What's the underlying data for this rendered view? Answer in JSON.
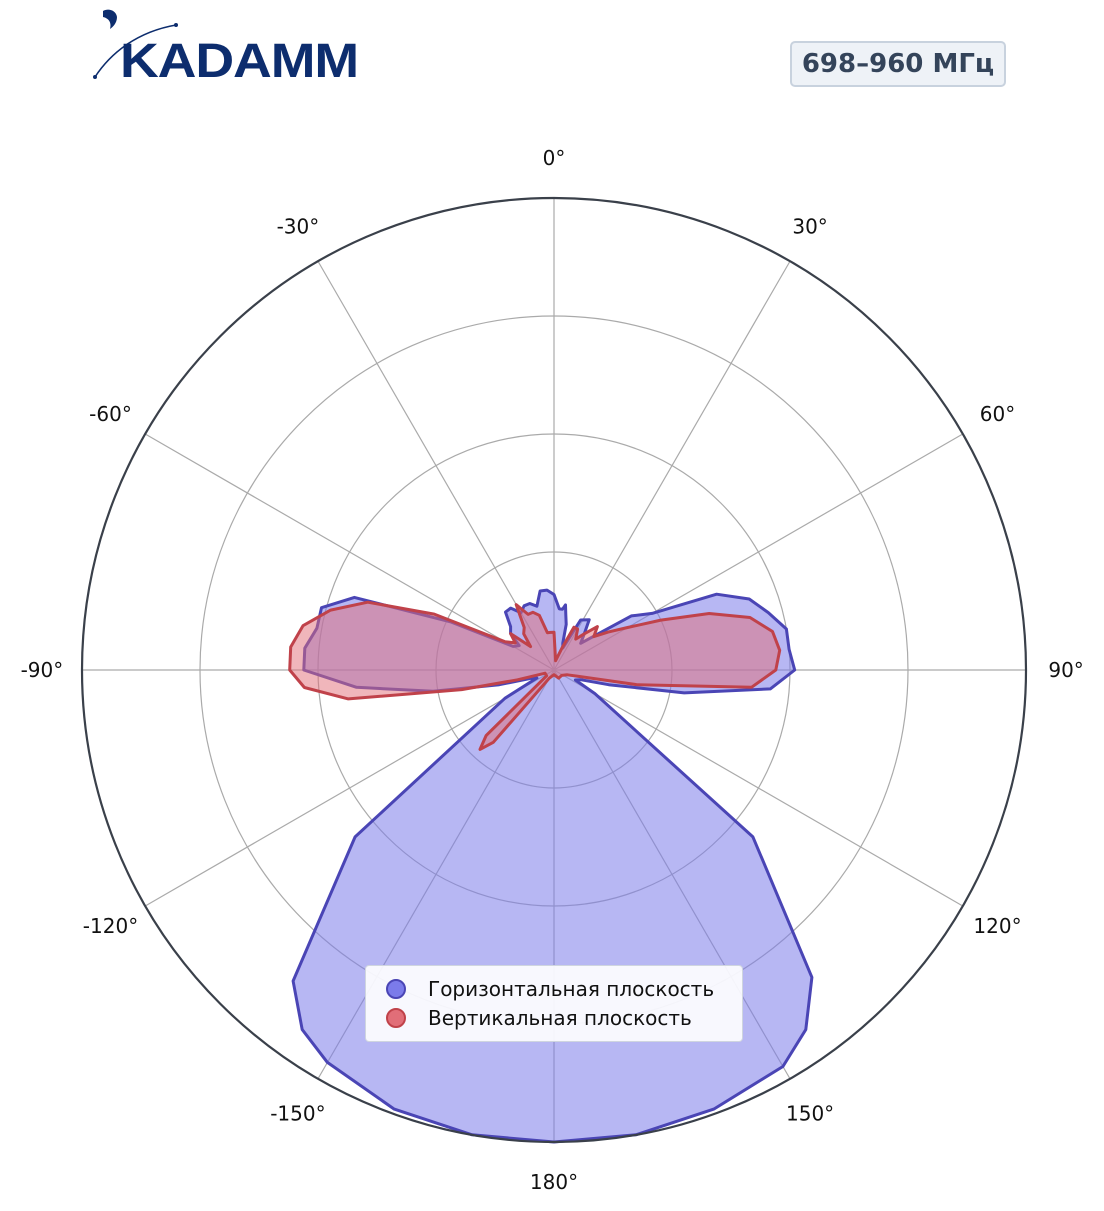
{
  "header": {
    "logo_text": "KADAMM",
    "frequency_badge": "698–960 МГц"
  },
  "colors": {
    "brand": "#0d2d6e",
    "horizontal_fill": "#7b7bea",
    "horizontal_line": "#4a45b5",
    "vertical_fill": "#e16e78",
    "vertical_line": "#c0424a",
    "grid": "#aaaaaa",
    "outer_ring": "#3a404a"
  },
  "chart_data": {
    "type": "polar",
    "angle_unit": "degrees",
    "angle_zero": "top",
    "angle_direction": "clockwise",
    "angle_ticks": [
      0,
      30,
      60,
      90,
      120,
      150,
      180,
      -150,
      -120,
      -90,
      -60,
      -30
    ],
    "angle_tick_labels": [
      "0°",
      "30°",
      "60°",
      "90°",
      "120°",
      "150°",
      "180°",
      "-150°",
      "-120°",
      "-90°",
      "-60°",
      "-30°"
    ],
    "radial_range": [
      0,
      1
    ],
    "radial_gridlines": [
      0.25,
      0.5,
      0.75,
      1.0
    ],
    "radial_tick_labels": "hidden",
    "grid": true,
    "legend_position": "bottom-center",
    "series": [
      {
        "name": "Горизонтальная плоскость",
        "color": "#7b7bea",
        "points": [
          [
            0,
            0.16
          ],
          [
            5,
            0.13
          ],
          [
            8,
            0.13
          ],
          [
            10,
            0.14
          ],
          [
            12,
            0.12
          ],
          [
            15,
            0.1
          ],
          [
            18,
            0.06
          ],
          [
            22,
            0.05
          ],
          [
            28,
            0.12
          ],
          [
            35,
            0.13
          ],
          [
            40,
            0.1
          ],
          [
            45,
            0.08
          ],
          [
            55,
            0.2
          ],
          [
            60,
            0.24
          ],
          [
            65,
            0.38
          ],
          [
            70,
            0.44
          ],
          [
            75,
            0.47
          ],
          [
            80,
            0.5
          ],
          [
            85,
            0.5
          ],
          [
            90,
            0.51
          ],
          [
            95,
            0.46
          ],
          [
            100,
            0.28
          ],
          [
            105,
            0.12
          ],
          [
            110,
            0.06
          ],
          [
            115,
            0.05
          ],
          [
            120,
            0.1
          ],
          [
            130,
            0.55
          ],
          [
            140,
            0.85
          ],
          [
            145,
            0.93
          ],
          [
            150,
            0.97
          ],
          [
            160,
            0.99
          ],
          [
            170,
            1.0
          ],
          [
            180,
            1.0
          ],
          [
            190,
            1.0
          ],
          [
            200,
            0.99
          ],
          [
            210,
            0.96
          ],
          [
            215,
            0.93
          ],
          [
            220,
            0.86
          ],
          [
            230,
            0.55
          ],
          [
            240,
            0.12
          ],
          [
            245,
            0.04
          ],
          [
            250,
            0.05
          ],
          [
            255,
            0.12
          ],
          [
            260,
            0.26
          ],
          [
            265,
            0.42
          ],
          [
            270,
            0.53
          ],
          [
            275,
            0.53
          ],
          [
            280,
            0.51
          ],
          [
            285,
            0.51
          ],
          [
            290,
            0.45
          ],
          [
            295,
            0.24
          ],
          [
            300,
            0.1
          ],
          [
            305,
            0.09
          ],
          [
            310,
            0.12
          ],
          [
            315,
            0.13
          ],
          [
            320,
            0.16
          ],
          [
            325,
            0.16
          ],
          [
            330,
            0.14
          ],
          [
            335,
            0.15
          ],
          [
            340,
            0.15
          ],
          [
            345,
            0.14
          ],
          [
            350,
            0.17
          ],
          [
            355,
            0.17
          ]
        ]
      },
      {
        "name": "Вертикальная плоскость",
        "color": "#e16e78",
        "points": [
          [
            0,
            0.08
          ],
          [
            10,
            0.02
          ],
          [
            20,
            0.05
          ],
          [
            25,
            0.1
          ],
          [
            30,
            0.1
          ],
          [
            35,
            0.08
          ],
          [
            40,
            0.1
          ],
          [
            45,
            0.13
          ],
          [
            50,
            0.11
          ],
          [
            55,
            0.14
          ],
          [
            60,
            0.18
          ],
          [
            65,
            0.25
          ],
          [
            70,
            0.35
          ],
          [
            75,
            0.43
          ],
          [
            80,
            0.47
          ],
          [
            85,
            0.48
          ],
          [
            90,
            0.47
          ],
          [
            95,
            0.42
          ],
          [
            100,
            0.18
          ],
          [
            105,
            0.05
          ],
          [
            110,
            0.03
          ],
          [
            125,
            0.02
          ],
          [
            150,
            0.02
          ],
          [
            180,
            0.01
          ],
          [
            210,
            0.02
          ],
          [
            220,
            0.2
          ],
          [
            223,
            0.23
          ],
          [
            226,
            0.2
          ],
          [
            232,
            0.02
          ],
          [
            250,
            0.02
          ],
          [
            255,
            0.08
          ],
          [
            258,
            0.2
          ],
          [
            262,
            0.44
          ],
          [
            266,
            0.53
          ],
          [
            270,
            0.56
          ],
          [
            275,
            0.56
          ],
          [
            280,
            0.54
          ],
          [
            285,
            0.49
          ],
          [
            290,
            0.42
          ],
          [
            295,
            0.28
          ],
          [
            300,
            0.12
          ],
          [
            305,
            0.1
          ],
          [
            310,
            0.12
          ],
          [
            315,
            0.07
          ],
          [
            320,
            0.1
          ],
          [
            325,
            0.11
          ],
          [
            330,
            0.16
          ],
          [
            335,
            0.13
          ],
          [
            340,
            0.13
          ],
          [
            345,
            0.12
          ],
          [
            350,
            0.08
          ],
          [
            355,
            0.08
          ]
        ]
      }
    ]
  }
}
